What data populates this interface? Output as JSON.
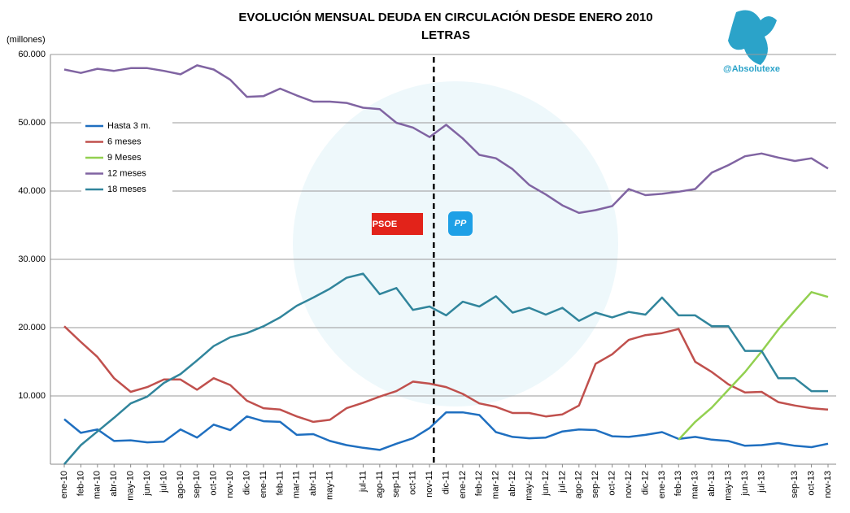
{
  "chart_data": {
    "type": "line",
    "title": "EVOLUCIÓN MENSUAL DEUDA EN CIRCULACIÓN DESDE ENERO 2010",
    "subtitle": "LETRAS",
    "y_label": "(millones)",
    "watermark": "@Absolutexe",
    "annotations": [
      "PSOE",
      "PP"
    ],
    "categories": [
      "ene-10",
      "feb-10",
      "mar-10",
      "abr-10",
      "may-10",
      "jun-10",
      "jul-10",
      "ago-10",
      "sep-10",
      "oct-10",
      "nov-10",
      "dic-10",
      "ene-11",
      "feb-11",
      "mar-11",
      "abr-11",
      "may-11",
      null,
      "jul-11",
      "ago-11",
      "sep-11",
      "oct-11",
      "nov-11",
      "dic-11",
      "ene-12",
      "feb-12",
      "mar-12",
      "abr-12",
      "may-12",
      "jun-12",
      "jul-12",
      "ago-12",
      "sep-12",
      "oct-12",
      "nov-12",
      "dic-12",
      "ene-13",
      "feb-13",
      "mar-13",
      "abr-13",
      "may-13",
      "jun-13",
      "jul-13",
      null,
      "sep-13",
      "oct-13",
      "nov-13"
    ],
    "ylim": [
      0,
      60000
    ],
    "yticks": [
      {
        "value": 10000,
        "label": "10.000"
      },
      {
        "value": 20000,
        "label": "20.000"
      },
      {
        "value": 30000,
        "label": "30.000"
      },
      {
        "value": 40000,
        "label": "40.000"
      },
      {
        "value": 50000,
        "label": "50.000"
      },
      {
        "value": 60000,
        "label": "60.000"
      }
    ],
    "grid": true,
    "legend": "upper left",
    "series": [
      {
        "name": "Hasta 3 m.",
        "color": "#1f6fc0",
        "values": [
          6600,
          4600,
          5100,
          3400,
          3500,
          3200,
          3300,
          5100,
          3900,
          5800,
          5000,
          7000,
          6300,
          6200,
          4300,
          4400,
          3400,
          2800,
          2400,
          2100,
          3000,
          3800,
          5300,
          7600,
          7600,
          7200,
          4700,
          4000,
          3800,
          3900,
          4800,
          5100,
          5000,
          4100,
          4000,
          4300,
          4700,
          3700,
          4000,
          3600,
          3400,
          2700,
          2800,
          3100,
          2700,
          2500,
          3000
        ]
      },
      {
        "name": "6 meses",
        "color": "#c0504d",
        "values": [
          20200,
          17900,
          15700,
          12600,
          10600,
          11300,
          12400,
          12400,
          10900,
          12600,
          11600,
          9300,
          8200,
          8000,
          7000,
          6200,
          6500,
          8200,
          9000,
          9900,
          10700,
          12100,
          11800,
          11300,
          10300,
          8900,
          8400,
          7500,
          7500,
          7000,
          7300,
          8600,
          14700,
          16100,
          18200,
          18900,
          19200,
          19800,
          15000,
          13500,
          11700,
          10500,
          10600,
          9100,
          8600,
          8200,
          8000
        ]
      },
      {
        "name": "9 Meses",
        "color": "#92d050",
        "values": [
          null,
          null,
          null,
          null,
          null,
          null,
          null,
          null,
          null,
          null,
          null,
          null,
          null,
          null,
          null,
          null,
          null,
          null,
          null,
          null,
          null,
          null,
          null,
          null,
          null,
          null,
          null,
          null,
          null,
          null,
          null,
          null,
          null,
          null,
          null,
          null,
          null,
          3600,
          6200,
          8300,
          10900,
          13500,
          16500,
          19700,
          22500,
          25200,
          24500
        ]
      },
      {
        "name": "12 meses",
        "color": "#8064a2",
        "values": [
          57800,
          57300,
          57900,
          57600,
          58000,
          58000,
          57600,
          57100,
          58400,
          57800,
          56300,
          53800,
          53900,
          55000,
          54000,
          53100,
          53100,
          52900,
          52200,
          52000,
          50000,
          49300,
          47900,
          49700,
          47700,
          45300,
          44800,
          43200,
          40900,
          39500,
          37900,
          36800,
          37200,
          37800,
          40300,
          39400,
          39600,
          39900,
          40300,
          42700,
          43800,
          45100,
          45500,
          44900,
          44400,
          44800,
          43300
        ]
      },
      {
        "name": "18 meses",
        "color": "#31859c",
        "values": [
          0,
          2800,
          4800,
          6800,
          8900,
          9900,
          11900,
          13200,
          15200,
          17300,
          18600,
          19200,
          20200,
          21500,
          23200,
          24400,
          25700,
          27300,
          27900,
          24900,
          25800,
          22600,
          23100,
          21800,
          23800,
          23100,
          24600,
          22200,
          22900,
          21900,
          22900,
          21000,
          22200,
          21500,
          22300,
          21900,
          24400,
          21800,
          21800,
          20200,
          20200,
          16600,
          16600,
          12600,
          12600,
          10700,
          10700
        ]
      }
    ]
  }
}
